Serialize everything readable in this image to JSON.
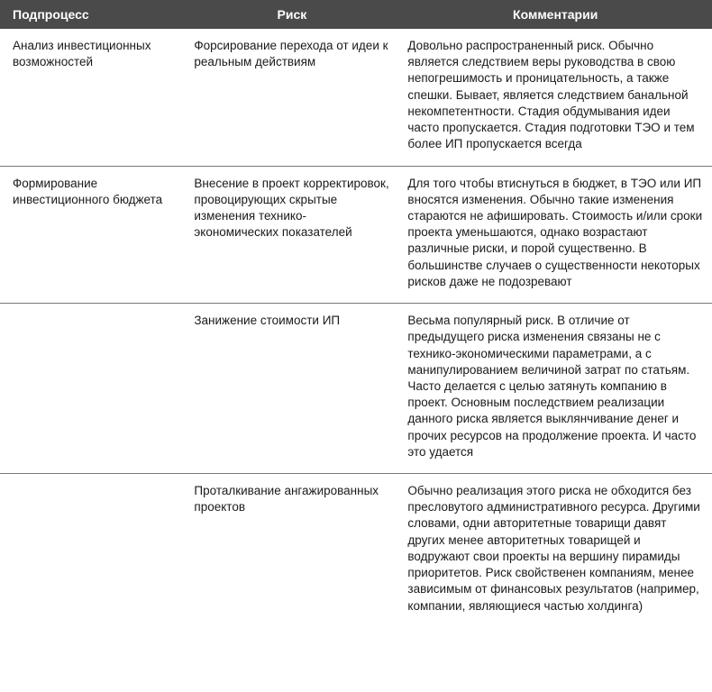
{
  "table": {
    "header_bg": "#4a4a4a",
    "header_fg": "#ffffff",
    "background_color": "#ffffff",
    "text_color": "#1a1a1a",
    "border_color": "#777777",
    "font_size_header": 14,
    "font_size_body": 13.5,
    "line_height": 1.35,
    "column_widths_pct": [
      26,
      30,
      44
    ],
    "columns": [
      "Подпроцесс",
      "Риск",
      "Комментарии"
    ],
    "rows": [
      {
        "process": "Анализ инвестиционных возможностей",
        "risk": "Форсирование перехода от идеи к реальным действиям",
        "comment": "Довольно распространенный риск. Обычно является следствием веры руководства в свою непогрешимость и проницательность, а также спешки. Бывает, является следствием банальной некомпетентности. Стадия обдумывания идеи часто пропускается. Стадия подготовки ТЭО и тем более ИП пропускается всегда"
      },
      {
        "process": "Формирование инвестиционного бюджета",
        "risk": "Внесение в проект корректировок, провоцирующих скрытые изменения технико-экономических показателей",
        "comment": "Для того чтобы втиснуться в бюджет, в ТЭО или ИП вносятся изменения. Обычно такие изменения стараются не афишировать. Стоимость и/или сроки проекта уменьшаются, однако возрастают различные риски, и порой существенно. В большинстве случаев о существенности некоторых рисков даже не подозревают"
      },
      {
        "process": "",
        "risk": "Занижение стоимости ИП",
        "comment": "Весьма популярный риск. В отличие от предыдущего риска изменения связаны не с технико-экономическими параметрами, а с манипулированием величиной затрат по статьям. Часто делается с целью затянуть компанию в проект. Основным последствием реализации данного риска является выклянчивание денег и прочих ресурсов на продолжение проекта. И часто это удается"
      },
      {
        "process": "",
        "risk": "Проталкивание ангажированных проектов",
        "comment": "Обычно реализация этого риска не обходится без пресловутого административного ресурса. Другими словами, одни авторитетные товарищи давят других менее авторитетных товарищей и водружают свои проекты на вершину пирамиды приоритетов. Риск свойственен компаниям, менее зависимым от финансовых результатов (например, компании, являющиеся частью холдинга)"
      }
    ]
  }
}
